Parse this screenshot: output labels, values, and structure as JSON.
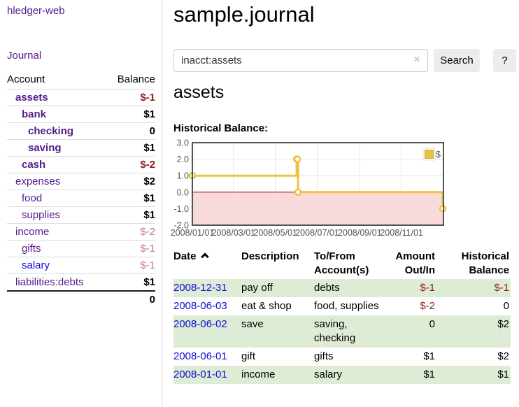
{
  "colors": {
    "link_purple": "#551a8b",
    "link_blue": "#0f0fd6",
    "negative_strong": "#8b1c1c",
    "negative_soft": "#c47878",
    "row_green": "#deebd5",
    "series_yellow": "#edc240",
    "axis_gray": "#545454"
  },
  "sidebar": {
    "app_title": "hledger-web",
    "journal_link": "Journal",
    "accounts": {
      "headers": [
        "Account",
        "Balance"
      ],
      "rows": [
        {
          "name": "assets",
          "balance": "$-1",
          "level": 1
        },
        {
          "name": "bank",
          "balance": "$1",
          "level": 2
        },
        {
          "name": "checking",
          "balance": "0",
          "level": 3
        },
        {
          "name": "saving",
          "balance": "$1",
          "level": 3
        },
        {
          "name": "cash",
          "balance": "$-2",
          "level": 2
        },
        {
          "name": "expenses",
          "balance": "$2",
          "level": 1
        },
        {
          "name": "food",
          "balance": "$1",
          "level": 2
        },
        {
          "name": "supplies",
          "balance": "$1",
          "level": 2
        },
        {
          "name": "income",
          "balance": "$-2",
          "level": 1
        },
        {
          "name": "gifts",
          "balance": "$-1",
          "level": 2
        },
        {
          "name": "salary",
          "balance": "$-1",
          "level": 2
        },
        {
          "name": "liabilities:debts",
          "balance": "$1",
          "level": 1
        }
      ],
      "total": "0"
    }
  },
  "main": {
    "title": "sample.journal",
    "search": {
      "value": "inacct:assets",
      "clear_icon": "×",
      "search_button": "Search",
      "help_button": "?"
    },
    "account_heading": "assets",
    "chart_heading": "Historical Balance:",
    "register": {
      "headers": {
        "date": "Date",
        "description": "Description",
        "tofrom": "To/From\nAccount(s)",
        "amount": "Amount\nOut/In",
        "balance": "Historical\nBalance"
      },
      "rows": [
        {
          "date": "2008-12-31",
          "description": "pay off",
          "tofrom": "debts",
          "amount": "$-1",
          "balance": "$-1"
        },
        {
          "date": "2008-06-03",
          "description": "eat & shop",
          "tofrom": "food, supplies",
          "amount": "$-2",
          "balance": "0"
        },
        {
          "date": "2008-06-02",
          "description": "save",
          "tofrom": "saving,\nchecking",
          "amount": "0",
          "balance": "$2"
        },
        {
          "date": "2008-06-01",
          "description": "gift",
          "tofrom": "gifts",
          "amount": "$1",
          "balance": "$2"
        },
        {
          "date": "2008-01-01",
          "description": "income",
          "tofrom": "salary",
          "amount": "$1",
          "balance": "$1"
        }
      ]
    }
  },
  "chart_data": {
    "type": "line",
    "step": true,
    "title": "Historical Balance:",
    "series": [
      {
        "name": "$",
        "color": "#edc240",
        "points": [
          [
            "2008-01-01",
            1
          ],
          [
            "2008-06-01",
            2
          ],
          [
            "2008-06-02",
            2
          ],
          [
            "2008-06-03",
            0
          ],
          [
            "2008-12-31",
            -1
          ]
        ]
      }
    ],
    "x_range": [
      "2008-01-01",
      "2009-01-01"
    ],
    "ylim": [
      -2,
      3
    ],
    "y_ticks": [
      "3.0",
      "2.0",
      "1.0",
      "0.0",
      "-1.0",
      "-2.0"
    ],
    "x_ticks": [
      {
        "date": "2008-01-01",
        "label": "2008/01/01"
      },
      {
        "date": "2008-03-01",
        "label": "2008/03/01"
      },
      {
        "date": "2008-05-01",
        "label": "2008/05/01"
      },
      {
        "date": "2008-07-01",
        "label": "2008/07/01"
      },
      {
        "date": "2008-09-01",
        "label": "2008/09/01"
      },
      {
        "date": "2008-11-01",
        "label": "2008/11/01"
      }
    ],
    "legend_position": "top-right",
    "grid": true,
    "negative_region_fill": "#f9dada",
    "zero_line_color": "#8b0000",
    "axis_color": "#545454"
  }
}
